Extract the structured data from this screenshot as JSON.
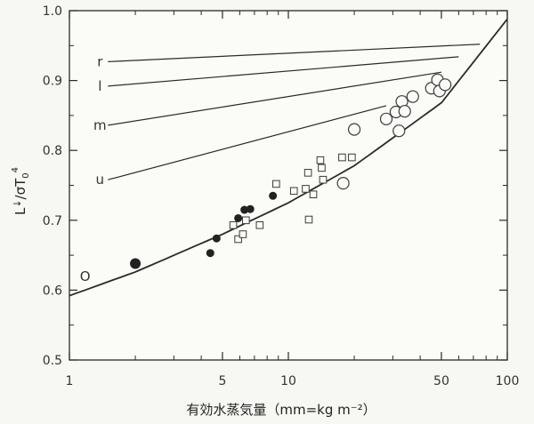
{
  "chart_data": {
    "type": "scatter",
    "title": "",
    "xlabel": "有効水蒸気量（mm=kg m⁻²）",
    "ylabel_main": "L",
    "ylabel_arrow": "↓",
    "ylabel_rest": "/σT",
    "ylabel_sub": "0",
    "ylabel_sup": "4",
    "x_scale": "log",
    "xlim": [
      1,
      100
    ],
    "ylim": [
      0.5,
      1.0
    ],
    "x_ticks": [
      {
        "value": 1,
        "label": "1"
      },
      {
        "value": 5,
        "label": "5"
      },
      {
        "value": 10,
        "label": "10"
      },
      {
        "value": 50,
        "label": "50"
      },
      {
        "value": 100,
        "label": "100"
      }
    ],
    "x_minor_ticks": [
      2,
      3,
      4,
      6,
      7,
      8,
      9,
      20,
      30,
      40,
      60,
      70,
      80,
      90
    ],
    "y_ticks": [
      {
        "value": 0.5,
        "label": "0.5"
      },
      {
        "value": 0.6,
        "label": "0.6"
      },
      {
        "value": 0.7,
        "label": "0.7"
      },
      {
        "value": 0.8,
        "label": "0.8"
      },
      {
        "value": 0.9,
        "label": "0.9"
      },
      {
        "value": 1.0,
        "label": "1.0"
      }
    ],
    "grid": false,
    "colors": {
      "line": "#2a2a2a",
      "filled_marker": "#222222",
      "open_marker": "#3a3a3a"
    },
    "curves": [
      {
        "label": "r",
        "x": [
          1.5,
          75
        ],
        "y": [
          0.927,
          0.952
        ]
      },
      {
        "label": "l",
        "x": [
          1.5,
          60
        ],
        "y": [
          0.892,
          0.934
        ]
      },
      {
        "label": "m",
        "x": [
          1.5,
          50
        ],
        "y": [
          0.836,
          0.912
        ]
      },
      {
        "label": "u",
        "x": [
          1.5,
          28
        ],
        "y": [
          0.758,
          0.864
        ]
      },
      {
        "label": "O",
        "x": [
          1,
          2,
          5,
          10,
          20,
          50,
          100
        ],
        "y": [
          0.592,
          0.626,
          0.68,
          0.725,
          0.778,
          0.868,
          0.988
        ]
      }
    ],
    "series": [
      {
        "marker": "filled-circle",
        "points": [
          [
            2,
            0.638
          ],
          [
            4.4,
            0.653
          ],
          [
            4.7,
            0.674
          ],
          [
            5.9,
            0.703
          ],
          [
            6.3,
            0.715
          ],
          [
            6.7,
            0.716
          ],
          [
            8.5,
            0.735
          ]
        ]
      },
      {
        "marker": "open-square",
        "points": [
          [
            5.6,
            0.693
          ],
          [
            5.9,
            0.673
          ],
          [
            6.2,
            0.68
          ],
          [
            6.4,
            0.7
          ],
          [
            7.4,
            0.693
          ],
          [
            8.8,
            0.752
          ],
          [
            10.6,
            0.742
          ],
          [
            12.0,
            0.745
          ],
          [
            12.3,
            0.768
          ],
          [
            12.4,
            0.701
          ],
          [
            13.0,
            0.737
          ],
          [
            14.0,
            0.786
          ],
          [
            14.2,
            0.775
          ],
          [
            14.4,
            0.758
          ],
          [
            17.6,
            0.79
          ],
          [
            19.5,
            0.79
          ]
        ]
      },
      {
        "marker": "open-circle",
        "points": [
          [
            17.8,
            0.753
          ],
          [
            20,
            0.83
          ],
          [
            28,
            0.845
          ],
          [
            31,
            0.855
          ],
          [
            32,
            0.828
          ],
          [
            33,
            0.87
          ],
          [
            34,
            0.856
          ],
          [
            37,
            0.877
          ],
          [
            45,
            0.889
          ],
          [
            48,
            0.901
          ],
          [
            49,
            0.885
          ],
          [
            52,
            0.894
          ]
        ]
      }
    ]
  }
}
